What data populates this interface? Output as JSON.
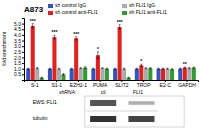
{
  "chart_data": {
    "type": "bar",
    "title": "A873",
    "ylabel": "fold enrichment",
    "categories": [
      "S-1",
      "S1-1",
      "EZH2-1",
      "PUMA",
      "SLIT2",
      "TROP",
      "E2-C",
      "GAPDH"
    ],
    "series": [
      {
        "name": "sh control IgG",
        "color": "#3355bb",
        "values": [
          1.0,
          1.0,
          1.0,
          1.0,
          1.0,
          1.0,
          1.0,
          1.0
        ],
        "errors": [
          0.05,
          0.05,
          0.05,
          0.05,
          0.05,
          0.05,
          0.05,
          0.05
        ]
      },
      {
        "name": "sh control anti-FLI1",
        "color": "#dd2222",
        "values": [
          4.8,
          3.8,
          3.7,
          2.2,
          4.7,
          1.3,
          1.0,
          1.1
        ],
        "errors": [
          0.2,
          0.15,
          0.15,
          0.3,
          0.2,
          0.1,
          0.05,
          0.05
        ],
        "significance": [
          "***",
          "***",
          "***",
          "*",
          "***",
          "*",
          null,
          "**"
        ]
      },
      {
        "name": "sh FLI1 IgG",
        "color": "#aaaaaa",
        "values": [
          1.05,
          1.0,
          1.05,
          1.05,
          1.0,
          1.05,
          1.0,
          1.05
        ],
        "errors": [
          0.05,
          0.05,
          0.05,
          0.05,
          0.05,
          0.05,
          0.05,
          0.05
        ]
      },
      {
        "name": "sh FLI1 anti-FLI1",
        "color": "#339933",
        "values": [
          0.2,
          0.5,
          1.1,
          1.0,
          0.2,
          1.05,
          0.95,
          1.1
        ],
        "errors": [
          0.05,
          0.08,
          0.08,
          0.05,
          0.05,
          0.05,
          0.05,
          0.05
        ]
      }
    ],
    "ylim": [
      0,
      5.5
    ],
    "yticks": [
      0.5,
      {
        "value": 1,
        "label": "1.0"
      },
      1.5,
      {
        "value": 2,
        "label": "2.0"
      },
      2.5,
      {
        "value": 3,
        "label": "3.0"
      },
      3.5,
      {
        "value": 4,
        "label": "4.0"
      },
      4.5,
      {
        "value": 5,
        "label": "5.0"
      }
    ],
    "legend": "upper left",
    "annotations": [
      "shRNA:",
      "ctl",
      "FLI1",
      "EWS::FLI1",
      "tubulin"
    ]
  }
}
